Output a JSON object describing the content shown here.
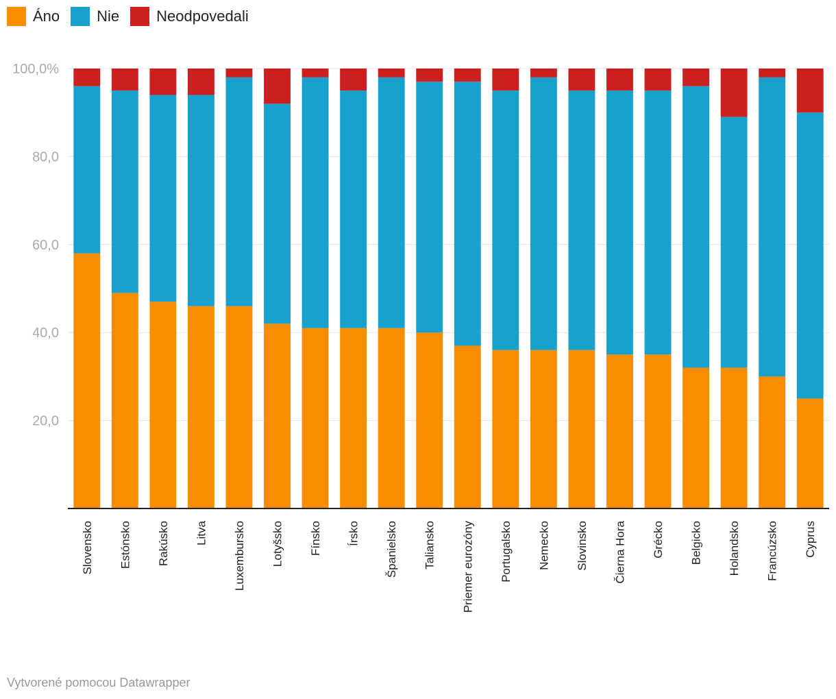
{
  "chart_data": {
    "type": "bar",
    "stacked": true,
    "title": "",
    "xlabel": "",
    "ylabel": "",
    "ylim": [
      0,
      100
    ],
    "yticks": [
      20,
      40,
      60,
      80,
      100
    ],
    "ytick_labels": [
      "20,0",
      "40,0",
      "60,0",
      "80,0",
      "100,0%"
    ],
    "grid": true,
    "legend_position": "top-left",
    "categories": [
      "Slovensko",
      "Estónsko",
      "Rakúsko",
      "Litva",
      "Luxembursko",
      "Lotyšsko",
      "Fínsko",
      "Írsko",
      "Španielsko",
      "Taliansko",
      "Priemer eurozóny",
      "Portugalsko",
      "Nemecko",
      "Slovinsko",
      "Čierna Hora",
      "Grécko",
      "Belgicko",
      "Holandsko",
      "Francúzsko",
      "Cyprus"
    ],
    "series": [
      {
        "name": "Áno",
        "color": "#fa8c00",
        "values": [
          58,
          49,
          47,
          46,
          46,
          42,
          41,
          41,
          41,
          40,
          37,
          36,
          36,
          36,
          35,
          35,
          32,
          32,
          30,
          25
        ]
      },
      {
        "name": "Nie",
        "color": "#18a1cd",
        "values": [
          38,
          46,
          47,
          48,
          52,
          50,
          57,
          54,
          57,
          57,
          60,
          59,
          62,
          59,
          60,
          60,
          64,
          57,
          68,
          65
        ]
      },
      {
        "name": "Neodpovedali",
        "color": "#cc1f1f",
        "values": [
          4,
          5,
          6,
          6,
          2,
          8,
          2,
          5,
          2,
          3,
          3,
          5,
          2,
          5,
          5,
          5,
          4,
          11,
          2,
          10
        ]
      }
    ]
  },
  "footer": {
    "credit": "Vytvorené pomocou Datawrapper"
  }
}
